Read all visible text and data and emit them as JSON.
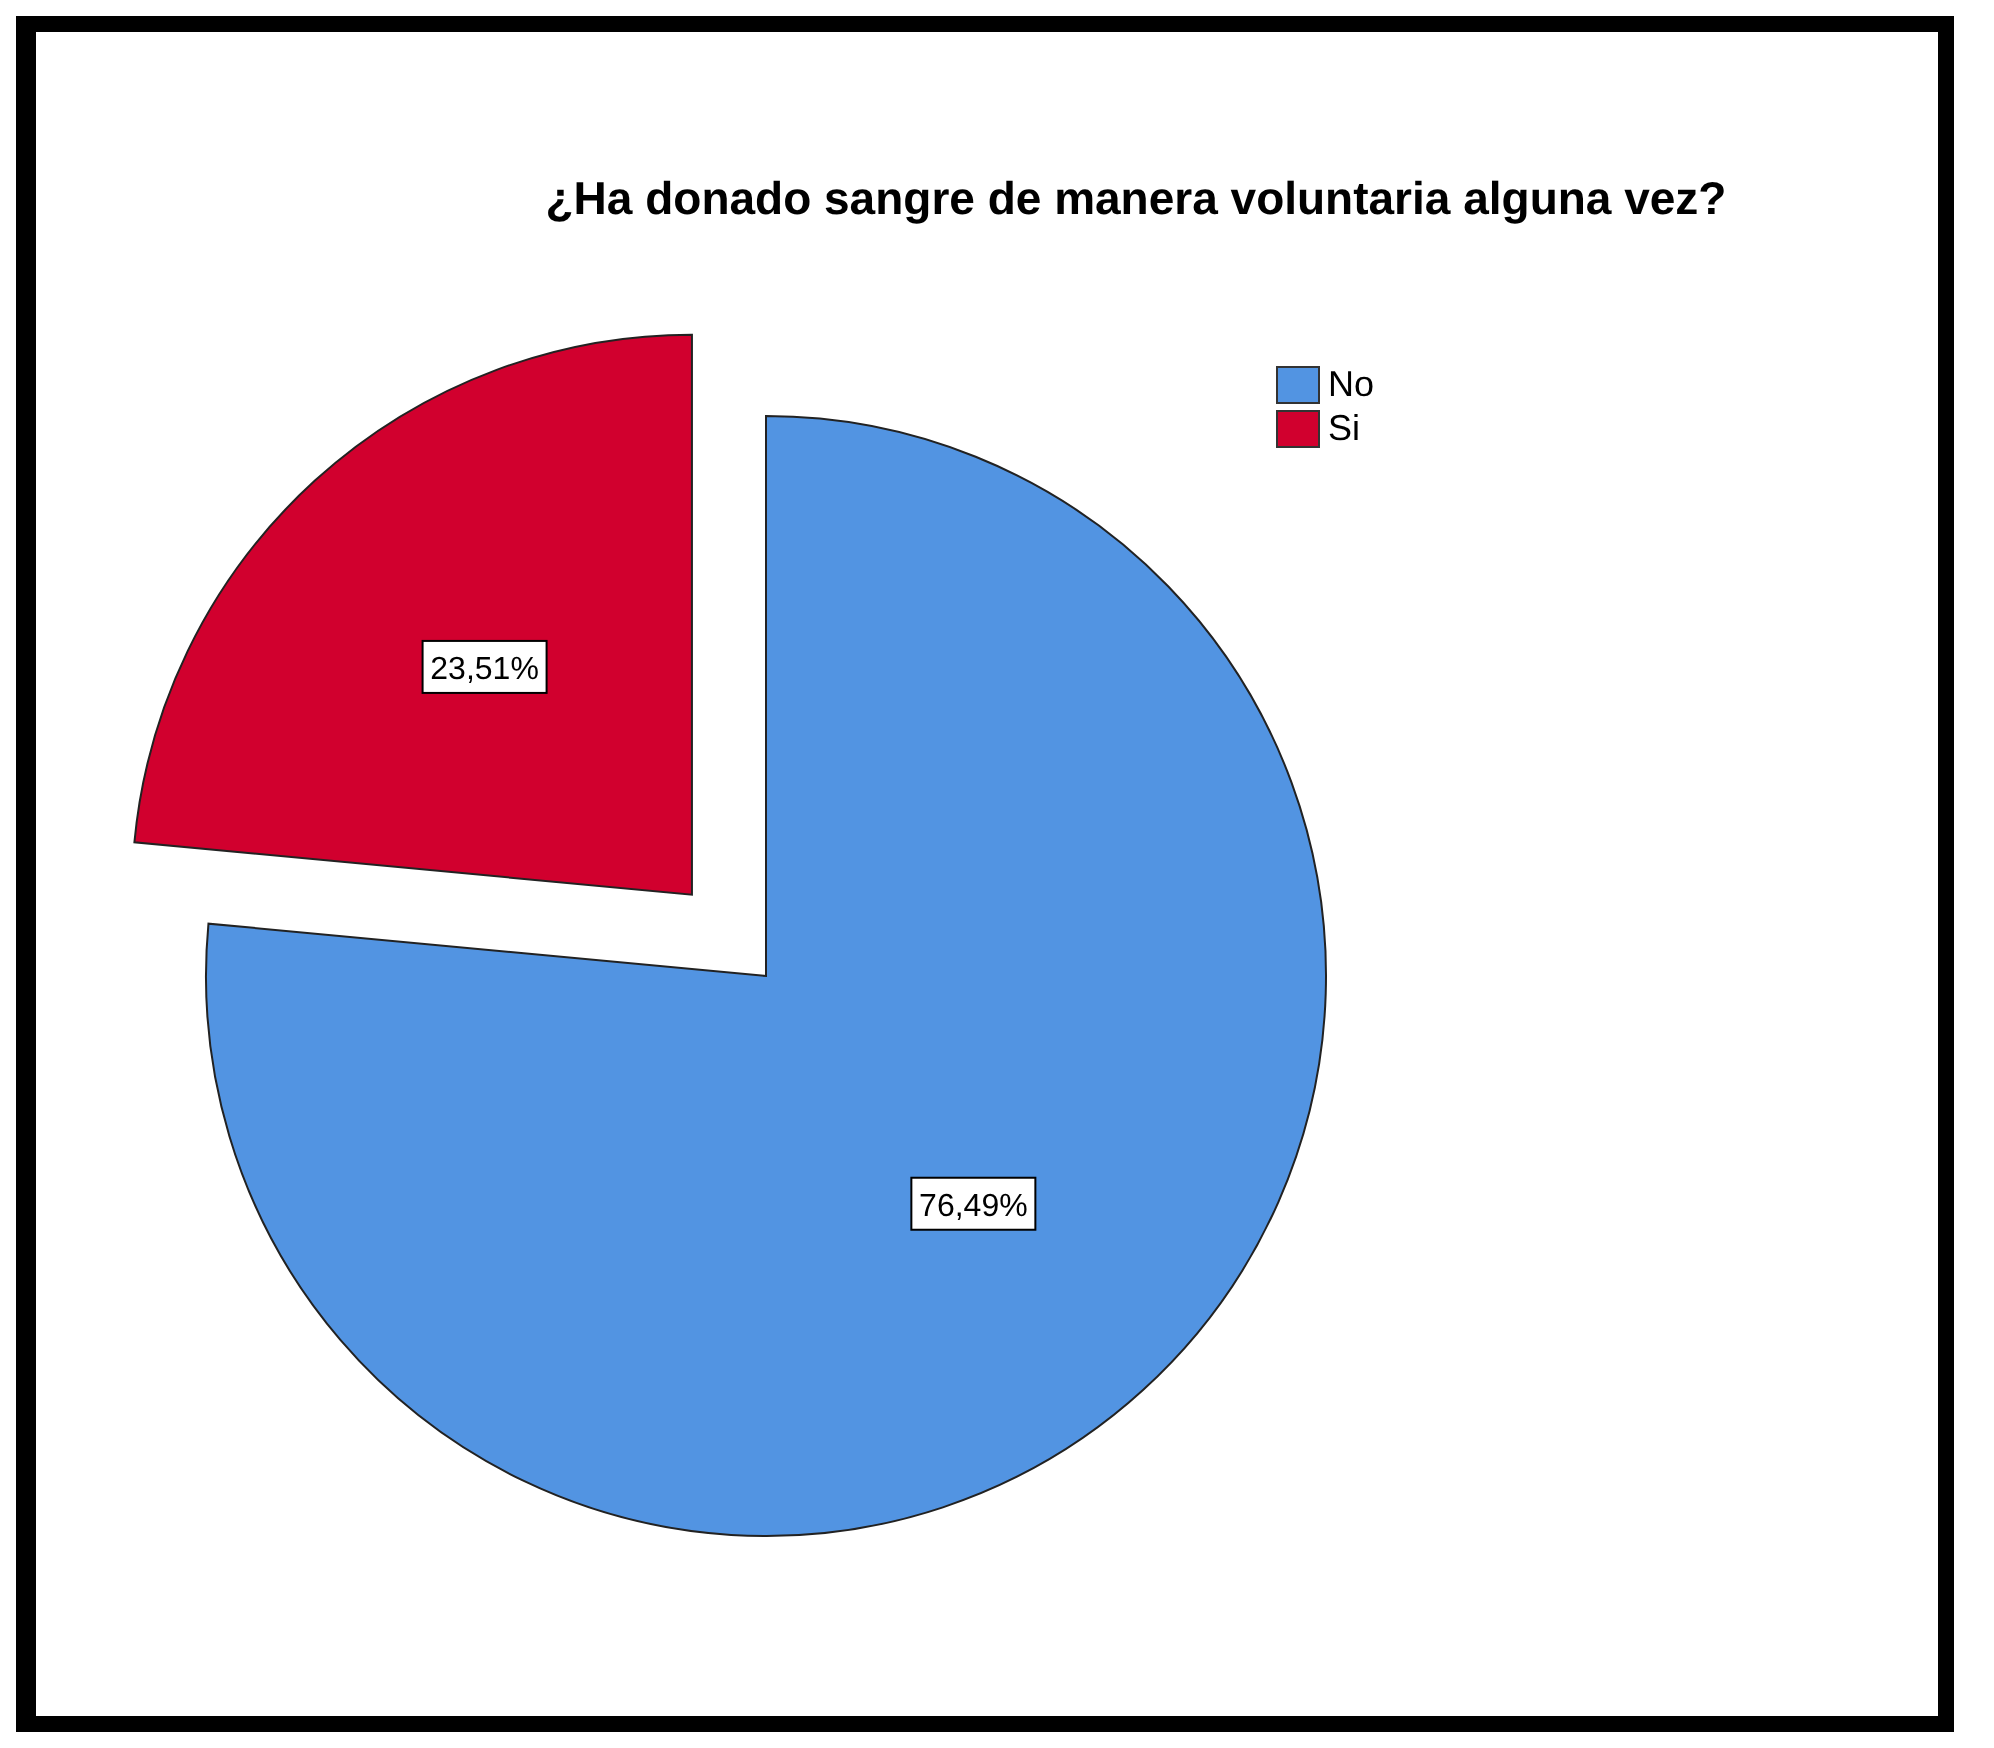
{
  "chart_data": {
    "type": "pie",
    "title": "¿Ha donado sangre de manera voluntaria alguna vez?",
    "categories": [
      "No",
      "Si"
    ],
    "values": [
      76.49,
      23.51
    ],
    "colors": [
      "#5294e2",
      "#d1002e"
    ],
    "value_labels": [
      "76,49%",
      "23,51%"
    ],
    "legend": "top right"
  }
}
